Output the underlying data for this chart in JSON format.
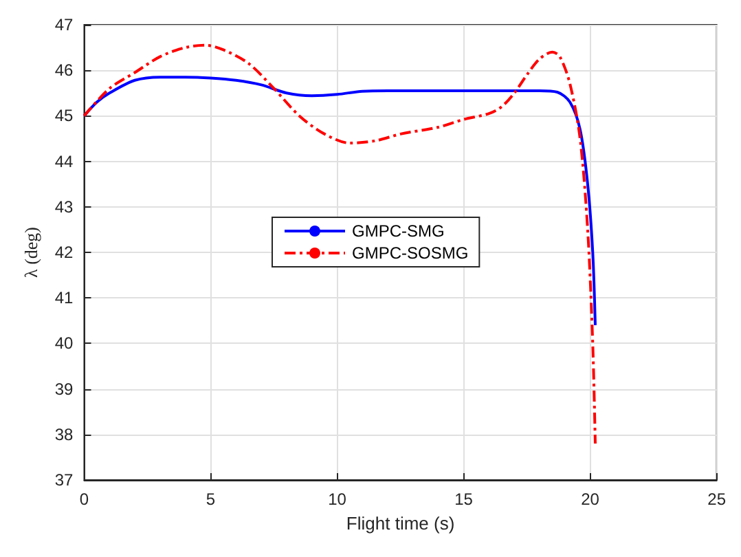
{
  "chart_data": {
    "type": "line",
    "xlabel": "Flight time (s)",
    "ylabel": "λ (deg)",
    "xlim": [
      0,
      25
    ],
    "xticks": [
      0,
      5,
      10,
      15,
      20,
      25
    ],
    "ylim": [
      37,
      47
    ],
    "yticks": [
      37,
      38,
      39,
      40,
      41,
      42,
      43,
      44,
      45,
      46,
      47
    ],
    "grid": true,
    "legend": "center",
    "marker": "none",
    "series": [
      {
        "name": "GMPC-SMG",
        "color": "#0000ff",
        "line_style": "solid",
        "x": [
          0,
          0.5,
          1,
          2,
          3,
          4,
          5,
          6,
          7,
          8,
          9,
          10,
          11,
          12,
          15,
          18,
          18.7,
          19.2,
          19.6,
          19.9,
          20.1,
          20.2
        ],
        "values": [
          45,
          45.3,
          45.5,
          45.78,
          45.85,
          45.85,
          45.83,
          45.78,
          45.68,
          45.5,
          45.44,
          45.47,
          45.54,
          45.55,
          45.55,
          45.55,
          45.52,
          45.3,
          44.7,
          43.5,
          42,
          40.4
        ]
      },
      {
        "name": "GMPC-SOSMG",
        "color": "#ff0000",
        "line_style": "dashdot",
        "x": [
          0,
          1,
          2,
          3,
          4,
          4.8,
          5.5,
          6.5,
          7.5,
          8.5,
          9.5,
          10.5,
          11.5,
          12.5,
          14,
          15,
          16,
          16.5,
          17,
          17.5,
          18,
          18.5,
          18.8,
          19.2,
          19.6,
          19.9,
          20.1,
          20.2
        ],
        "values": [
          45,
          45.6,
          45.95,
          46.3,
          46.5,
          46.55,
          46.45,
          46.15,
          45.6,
          45,
          44.6,
          44.4,
          44.45,
          44.6,
          44.75,
          44.92,
          45.05,
          45.2,
          45.5,
          45.9,
          46.25,
          46.4,
          46.3,
          45.7,
          44.5,
          42.5,
          40,
          37.8
        ]
      }
    ]
  }
}
